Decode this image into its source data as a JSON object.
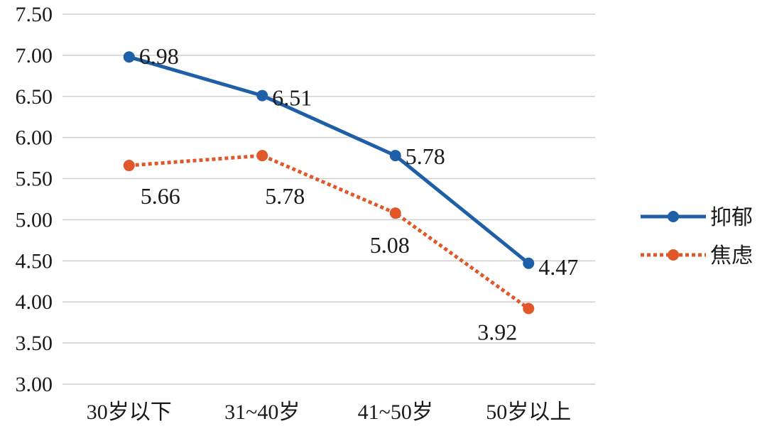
{
  "chart_data": {
    "type": "line",
    "categories": [
      "30岁以下",
      "31~40岁",
      "41~50岁",
      "50岁以上"
    ],
    "ylim": [
      3.0,
      7.5
    ],
    "yticks": [
      "3.00",
      "3.50",
      "4.00",
      "4.50",
      "5.00",
      "5.50",
      "6.00",
      "6.50",
      "7.00",
      "7.50"
    ],
    "grid": true,
    "legend_position": "right",
    "series": [
      {
        "name": "抑郁",
        "values": [
          6.98,
          6.51,
          5.78,
          4.47
        ],
        "labels": [
          "6.98",
          "6.51",
          "5.78",
          "4.47"
        ],
        "color": "#1f5fa8",
        "line_style": "solid"
      },
      {
        "name": "焦虑",
        "values": [
          5.66,
          5.78,
          5.08,
          3.92
        ],
        "labels": [
          "5.66",
          "5.78",
          "5.08",
          "3.92"
        ],
        "color": "#e0572a",
        "line_style": "dotted"
      }
    ]
  }
}
